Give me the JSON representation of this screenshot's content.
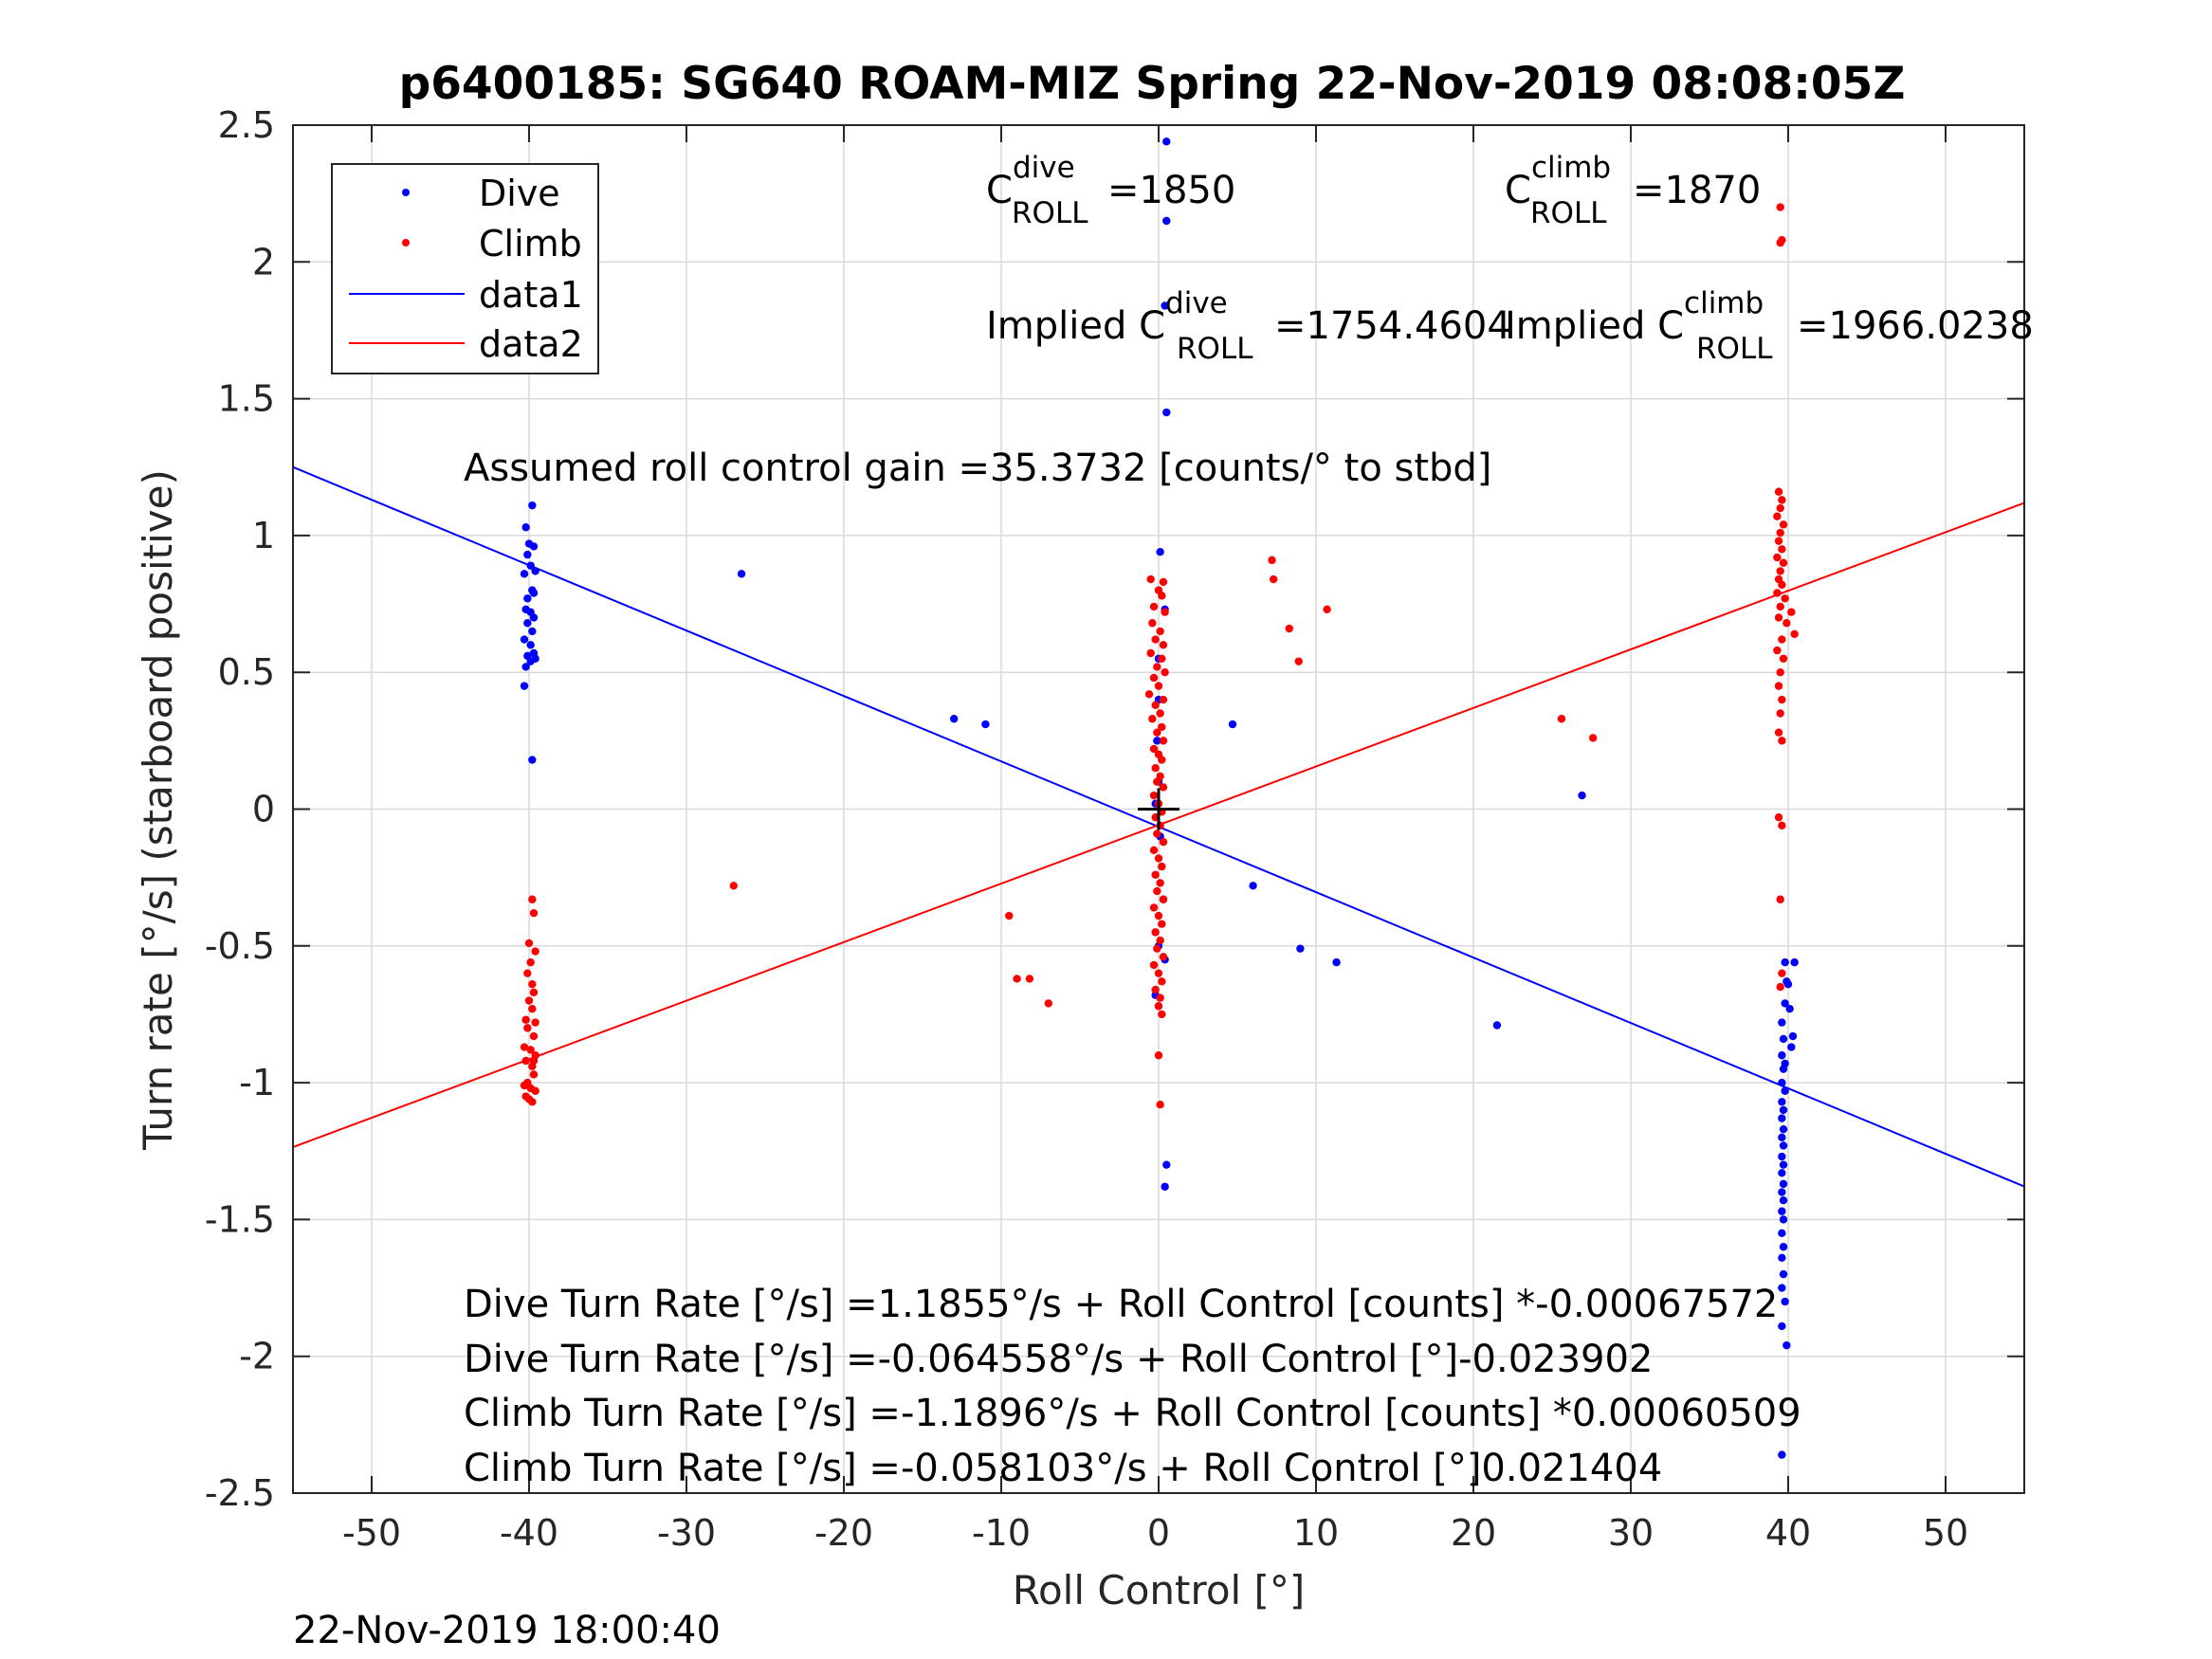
{
  "chart_data": {
    "type": "scatter",
    "title": "p6400185: SG640 ROAM-MIZ Spring 22-Nov-2019 08:08:05Z",
    "xlabel": "Roll Control [°]",
    "ylabel": "Turn rate [°/s] (starboard positive)",
    "xlim": [
      -55,
      55
    ],
    "ylim": [
      -2.5,
      2.5
    ],
    "xticks": [
      -50,
      -40,
      -30,
      -20,
      -10,
      0,
      10,
      20,
      30,
      40,
      50
    ],
    "xtick_labels": [
      "-50",
      "-40",
      "-30",
      "-20",
      "-10",
      "0",
      "10",
      "20",
      "30",
      "40",
      "50"
    ],
    "yticks": [
      -2.5,
      -2,
      -1.5,
      -1,
      -0.5,
      0,
      0.5,
      1,
      1.5,
      2,
      2.5
    ],
    "ytick_labels": [
      "-2.5",
      "-2",
      "-1.5",
      "-1",
      "-0.5",
      "0",
      "0.5",
      "1",
      "1.5",
      "2",
      "2.5"
    ],
    "grid": true,
    "legend_position": "top-left",
    "footer": "22-Nov-2019 18:00:40",
    "colors": {
      "dive": "#0000ff",
      "climb": "#ff0000"
    },
    "legend": [
      {
        "label": "Dive",
        "kind": "marker",
        "color": "#0000ff"
      },
      {
        "label": "Climb",
        "kind": "marker",
        "color": "#ff0000"
      },
      {
        "label": "data1",
        "kind": "line",
        "color": "#0000ff"
      },
      {
        "label": "data2",
        "kind": "line",
        "color": "#ff0000"
      }
    ],
    "annotations": {
      "c_dive_base": "C",
      "c_dive_sup": "dive",
      "c_dive_sub": "ROLL",
      "c_dive_val": "=1850",
      "c_climb_base": "C",
      "c_climb_sup": "climb",
      "c_climb_sub": "ROLL",
      "c_climb_val": "=1870",
      "implied_dive_base": "Implied C",
      "implied_dive_sup": "dive",
      "implied_dive_sub": "ROLL",
      "implied_dive_val": "=1754.4604",
      "implied_climb_base": "Implied C",
      "implied_climb_sup": "climb",
      "implied_climb_sub": "ROLL",
      "implied_climb_val": "=1966.0238",
      "gain": "Assumed roll control gain =35.3732 [counts/° to stbd]",
      "eq1": "Dive Turn Rate [°/s] =1.1855°/s + Roll Control [counts] *-0.00067572",
      "eq2": "Dive Turn Rate [°/s] =-0.064558°/s + Roll Control [°]-0.023902",
      "eq3": "Climb Turn Rate [°/s] =-1.1896°/s + Roll Control [counts] *0.00060509",
      "eq4": "Climb Turn Rate [°/s] =-0.058103°/s + Roll Control [°]0.021404"
    },
    "lines": [
      {
        "name": "data1",
        "color": "#0000ff",
        "x": [
          -55,
          55
        ],
        "y": [
          1.2501,
          -1.3792
        ]
      },
      {
        "name": "data2",
        "color": "#ff0000",
        "x": [
          -55,
          55
        ],
        "y": [
          -1.2353,
          1.1191
        ]
      }
    ],
    "center_marker": {
      "x": 0,
      "y": 0
    },
    "series": [
      {
        "name": "Dive",
        "color": "#0000ff",
        "points": [
          [
            -40.2,
            1.03
          ],
          [
            -39.8,
            1.11
          ],
          [
            -40.0,
            0.97
          ],
          [
            -39.7,
            0.96
          ],
          [
            -40.1,
            0.93
          ],
          [
            -39.9,
            0.89
          ],
          [
            -39.6,
            0.87
          ],
          [
            -40.3,
            0.86
          ],
          [
            -39.8,
            0.8
          ],
          [
            -39.7,
            0.79
          ],
          [
            -40.1,
            0.77
          ],
          [
            -40.2,
            0.73
          ],
          [
            -39.9,
            0.72
          ],
          [
            -39.7,
            0.7
          ],
          [
            -40.1,
            0.68
          ],
          [
            -39.8,
            0.65
          ],
          [
            -40.3,
            0.62
          ],
          [
            -39.9,
            0.6
          ],
          [
            -39.7,
            0.57
          ],
          [
            -40.1,
            0.56
          ],
          [
            -39.9,
            0.54
          ],
          [
            -40.2,
            0.52
          ],
          [
            -39.6,
            0.55
          ],
          [
            -40.3,
            0.45
          ],
          [
            -39.8,
            0.18
          ],
          [
            -26.5,
            0.86
          ],
          [
            -13.0,
            0.33
          ],
          [
            -11.0,
            0.31
          ],
          [
            4.7,
            0.31
          ],
          [
            6.0,
            -0.28
          ],
          [
            9.0,
            -0.51
          ],
          [
            11.3,
            -0.56
          ],
          [
            21.5,
            -0.79
          ],
          [
            26.9,
            0.05
          ],
          [
            0.5,
            2.44
          ],
          [
            0.5,
            2.15
          ],
          [
            0.4,
            1.84
          ],
          [
            0.5,
            1.45
          ],
          [
            0.1,
            0.94
          ],
          [
            0.4,
            0.73
          ],
          [
            0.0,
            0.55
          ],
          [
            0.0,
            0.4
          ],
          [
            -0.1,
            0.25
          ],
          [
            0.0,
            0.1
          ],
          [
            -0.2,
            0.02
          ],
          [
            0.1,
            -0.1
          ],
          [
            0.3,
            -0.33
          ],
          [
            0.0,
            -0.5
          ],
          [
            0.4,
            -0.55
          ],
          [
            -0.2,
            -0.68
          ],
          [
            0.0,
            -0.72
          ],
          [
            0.5,
            -1.3
          ],
          [
            0.4,
            -1.38
          ],
          [
            39.8,
            -0.56
          ],
          [
            40.4,
            -0.56
          ],
          [
            39.9,
            -0.63
          ],
          [
            40.0,
            -0.64
          ],
          [
            39.8,
            -0.71
          ],
          [
            40.1,
            -0.73
          ],
          [
            39.6,
            -0.78
          ],
          [
            40.3,
            -0.83
          ],
          [
            39.7,
            -0.84
          ],
          [
            40.2,
            -0.87
          ],
          [
            39.6,
            -0.9
          ],
          [
            39.8,
            -0.93
          ],
          [
            39.7,
            -0.95
          ],
          [
            39.6,
            -1.0
          ],
          [
            39.8,
            -1.03
          ],
          [
            39.6,
            -1.07
          ],
          [
            39.7,
            -1.1
          ],
          [
            39.6,
            -1.13
          ],
          [
            39.7,
            -1.17
          ],
          [
            39.6,
            -1.2
          ],
          [
            39.7,
            -1.23
          ],
          [
            39.6,
            -1.27
          ],
          [
            39.7,
            -1.3
          ],
          [
            39.6,
            -1.33
          ],
          [
            39.7,
            -1.37
          ],
          [
            39.6,
            -1.4
          ],
          [
            39.7,
            -1.43
          ],
          [
            39.6,
            -1.47
          ],
          [
            39.7,
            -1.5
          ],
          [
            39.6,
            -1.55
          ],
          [
            39.7,
            -1.6
          ],
          [
            39.6,
            -1.64
          ],
          [
            39.7,
            -1.7
          ],
          [
            39.6,
            -1.75
          ],
          [
            39.8,
            -1.8
          ],
          [
            39.6,
            -1.89
          ],
          [
            39.9,
            -1.96
          ],
          [
            39.6,
            -2.36
          ]
        ]
      },
      {
        "name": "Climb",
        "color": "#ff0000",
        "points": [
          [
            -39.8,
            -0.33
          ],
          [
            -39.7,
            -0.38
          ],
          [
            -40.0,
            -0.49
          ],
          [
            -39.6,
            -0.52
          ],
          [
            -39.9,
            -0.56
          ],
          [
            -40.1,
            -0.6
          ],
          [
            -39.8,
            -0.64
          ],
          [
            -39.7,
            -0.67
          ],
          [
            -40.0,
            -0.7
          ],
          [
            -39.8,
            -0.73
          ],
          [
            -40.2,
            -0.77
          ],
          [
            -39.6,
            -0.78
          ],
          [
            -40.1,
            -0.8
          ],
          [
            -39.7,
            -0.83
          ],
          [
            -40.3,
            -0.87
          ],
          [
            -39.9,
            -0.88
          ],
          [
            -39.6,
            -0.9
          ],
          [
            -40.2,
            -0.92
          ],
          [
            -39.8,
            -0.94
          ],
          [
            -39.7,
            -0.97
          ],
          [
            -40.1,
            -1.0
          ],
          [
            -39.9,
            -1.02
          ],
          [
            -39.6,
            -1.03
          ],
          [
            -40.2,
            -1.05
          ],
          [
            -39.8,
            -1.07
          ],
          [
            -40.0,
            -1.06
          ],
          [
            -40.3,
            -1.01
          ],
          [
            -39.7,
            -0.92
          ],
          [
            -27.0,
            -0.28
          ],
          [
            -9.5,
            -0.39
          ],
          [
            -9.0,
            -0.62
          ],
          [
            -8.2,
            -0.62
          ],
          [
            -7.0,
            -0.71
          ],
          [
            7.2,
            0.91
          ],
          [
            7.3,
            0.84
          ],
          [
            8.3,
            0.66
          ],
          [
            8.9,
            0.54
          ],
          [
            10.7,
            0.73
          ],
          [
            25.6,
            0.33
          ],
          [
            27.6,
            0.26
          ],
          [
            0.0,
            0.8
          ],
          [
            0.3,
            0.83
          ],
          [
            -0.5,
            0.84
          ],
          [
            0.2,
            0.78
          ],
          [
            -0.3,
            0.74
          ],
          [
            0.4,
            0.72
          ],
          [
            -0.4,
            0.68
          ],
          [
            0.1,
            0.65
          ],
          [
            -0.2,
            0.62
          ],
          [
            0.3,
            0.6
          ],
          [
            -0.5,
            0.57
          ],
          [
            0.2,
            0.55
          ],
          [
            -0.1,
            0.52
          ],
          [
            0.4,
            0.5
          ],
          [
            -0.3,
            0.48
          ],
          [
            0.0,
            0.45
          ],
          [
            -0.6,
            0.42
          ],
          [
            0.3,
            0.4
          ],
          [
            -0.2,
            0.38
          ],
          [
            0.1,
            0.35
          ],
          [
            -0.4,
            0.33
          ],
          [
            0.2,
            0.3
          ],
          [
            -0.1,
            0.28
          ],
          [
            0.3,
            0.25
          ],
          [
            -0.3,
            0.22
          ],
          [
            0.0,
            0.2
          ],
          [
            0.2,
            0.18
          ],
          [
            -0.2,
            0.15
          ],
          [
            0.1,
            0.12
          ],
          [
            -0.1,
            0.1
          ],
          [
            0.3,
            0.08
          ],
          [
            -0.3,
            0.05
          ],
          [
            0.0,
            0.02
          ],
          [
            0.2,
            -0.01
          ],
          [
            -0.2,
            -0.03
          ],
          [
            0.1,
            -0.06
          ],
          [
            -0.1,
            -0.09
          ],
          [
            0.3,
            -0.12
          ],
          [
            -0.3,
            -0.15
          ],
          [
            0.0,
            -0.18
          ],
          [
            0.2,
            -0.21
          ],
          [
            -0.2,
            -0.24
          ],
          [
            0.1,
            -0.27
          ],
          [
            -0.1,
            -0.3
          ],
          [
            0.3,
            -0.33
          ],
          [
            -0.3,
            -0.36
          ],
          [
            0.0,
            -0.39
          ],
          [
            0.2,
            -0.42
          ],
          [
            -0.2,
            -0.45
          ],
          [
            0.1,
            -0.48
          ],
          [
            -0.1,
            -0.51
          ],
          [
            0.3,
            -0.54
          ],
          [
            -0.3,
            -0.57
          ],
          [
            0.0,
            -0.6
          ],
          [
            0.2,
            -0.63
          ],
          [
            -0.2,
            -0.66
          ],
          [
            0.1,
            -0.69
          ],
          [
            0.0,
            -0.72
          ],
          [
            0.2,
            -0.75
          ],
          [
            0.0,
            -0.9
          ],
          [
            0.1,
            -1.08
          ],
          [
            39.5,
            2.2
          ],
          [
            39.6,
            2.08
          ],
          [
            39.5,
            2.07
          ],
          [
            39.4,
            1.16
          ],
          [
            39.6,
            1.13
          ],
          [
            39.5,
            1.1
          ],
          [
            39.3,
            1.07
          ],
          [
            39.7,
            1.04
          ],
          [
            39.5,
            1.01
          ],
          [
            39.4,
            0.98
          ],
          [
            39.6,
            0.95
          ],
          [
            39.3,
            0.92
          ],
          [
            39.7,
            0.9
          ],
          [
            39.5,
            0.87
          ],
          [
            39.4,
            0.84
          ],
          [
            39.6,
            0.82
          ],
          [
            39.3,
            0.79
          ],
          [
            39.8,
            0.77
          ],
          [
            39.5,
            0.74
          ],
          [
            40.2,
            0.72
          ],
          [
            39.4,
            0.7
          ],
          [
            39.9,
            0.68
          ],
          [
            40.4,
            0.64
          ],
          [
            39.6,
            0.62
          ],
          [
            39.3,
            0.58
          ],
          [
            39.7,
            0.55
          ],
          [
            39.5,
            0.5
          ],
          [
            39.4,
            0.45
          ],
          [
            39.6,
            0.4
          ],
          [
            39.5,
            0.35
          ],
          [
            39.4,
            0.28
          ],
          [
            39.6,
            0.25
          ],
          [
            39.4,
            -0.03
          ],
          [
            39.6,
            -0.06
          ],
          [
            39.5,
            -0.33
          ],
          [
            39.6,
            -0.6
          ],
          [
            39.5,
            -0.65
          ]
        ]
      }
    ]
  }
}
